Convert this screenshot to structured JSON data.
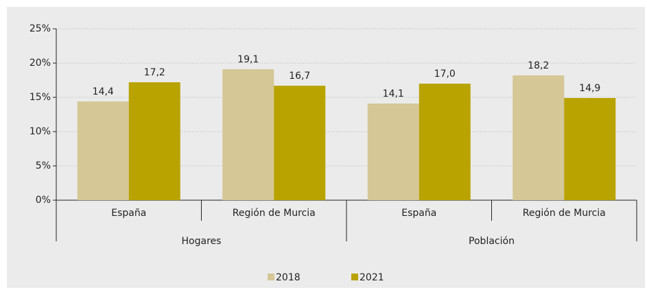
{
  "chart_data": {
    "type": "bar",
    "categories": [
      "España",
      "Región de Murcia",
      "España",
      "Región de Murcia"
    ],
    "groups": [
      "Hogares",
      "Población"
    ],
    "series": [
      {
        "name": "2018",
        "color": "#d5c796",
        "values": [
          14.4,
          19.1,
          14.1,
          18.2
        ],
        "value_labels": [
          "14,4",
          "19,1",
          "14,1",
          "18,2"
        ]
      },
      {
        "name": "2021",
        "color": "#b9a300",
        "values": [
          17.2,
          16.7,
          17.0,
          14.9
        ],
        "value_labels": [
          "17,2",
          "16,7",
          "17,0",
          "14,9"
        ]
      }
    ],
    "ylim": [
      0,
      25
    ],
    "yticks": [
      {
        "value": 0,
        "label": "0%"
      },
      {
        "value": 5,
        "label": "5%"
      },
      {
        "value": 10,
        "label": "10%"
      },
      {
        "value": 15,
        "label": "15%"
      },
      {
        "value": 20,
        "label": "20%"
      },
      {
        "value": 25,
        "label": "25%"
      }
    ],
    "grid": true,
    "legend": "bottom"
  }
}
